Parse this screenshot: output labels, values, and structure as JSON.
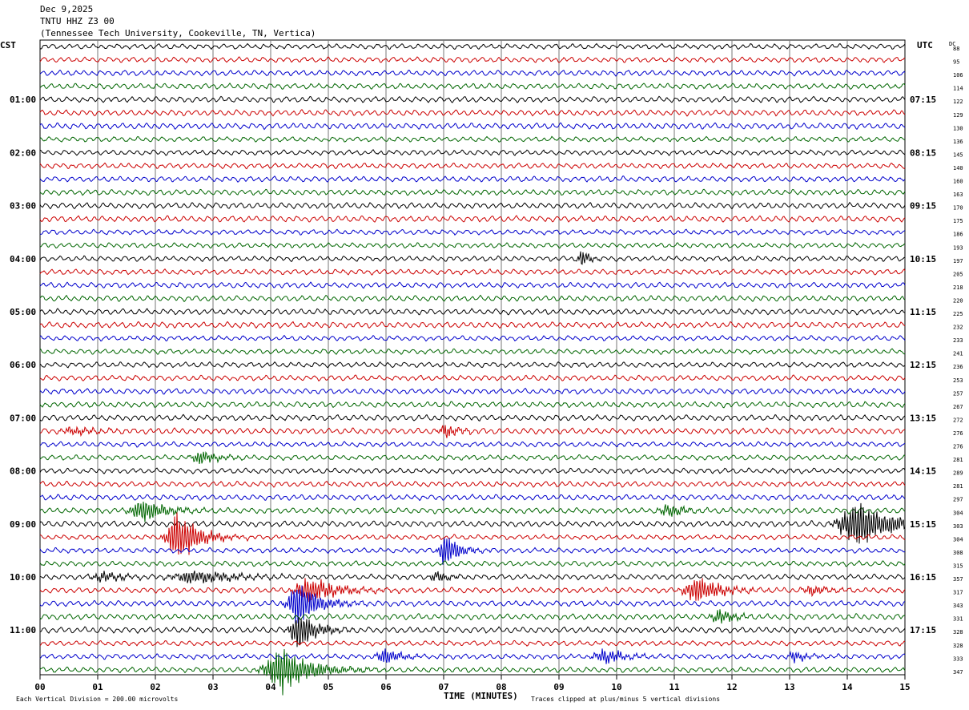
{
  "header": {
    "date": "Dec 9,2025",
    "station": "TNTU HHZ Z3 00",
    "location": "(Tennessee Tech University, Cookeville, TN, Vertica)"
  },
  "left_tz": "CST",
  "right_tz": "UTC",
  "dc_label": "DC",
  "footer": {
    "scale": "Each Vertical Division =  200.00 microvolts",
    "xlabel": "TIME (MINUTES)",
    "clip": "Traces clipped at plus/minus 5 vertical divisions"
  },
  "chart_data": {
    "type": "line",
    "title": "",
    "xlabel": "TIME (MINUTES)",
    "xlim": [
      0,
      15
    ],
    "x_ticks": [
      "00",
      "01",
      "02",
      "03",
      "04",
      "05",
      "06",
      "07",
      "08",
      "09",
      "10",
      "11",
      "12",
      "13",
      "14",
      "15"
    ],
    "colors": [
      "#000000",
      "#cc0000",
      "#0000cc",
      "#006600"
    ],
    "rows_per_hour": 4,
    "left_hour_labels": [
      "01:00",
      "02:00",
      "03:00",
      "04:00",
      "05:00",
      "06:00",
      "07:00",
      "08:00",
      "09:00",
      "10:00",
      "11:00"
    ],
    "right_hour_labels": [
      "07:15",
      "08:15",
      "09:15",
      "10:15",
      "11:15",
      "12:15",
      "13:15",
      "14:15",
      "15:15",
      "16:15",
      "17:15"
    ],
    "dc_offsets": [
      "88",
      "95",
      "106",
      "114",
      "122",
      "129",
      "130",
      "136",
      "145",
      "140",
      "160",
      "163",
      "170",
      "175",
      "186",
      "193",
      "197",
      "205",
      "218",
      "220",
      "225",
      "232",
      "233",
      "241",
      "236",
      "253",
      "257",
      "267",
      "272",
      "276",
      "276",
      "281",
      "289",
      "281",
      "297",
      "304",
      "303",
      "304",
      "308",
      "315",
      "357",
      "317",
      "343",
      "331",
      "328",
      "328",
      "333",
      "347"
    ],
    "events": [
      {
        "row": 16,
        "minute": 9.4,
        "amp": 1.2,
        "dur": 0.1
      },
      {
        "row": 29,
        "minute": 0.6,
        "amp": 0.4,
        "dur": 0.4
      },
      {
        "row": 29,
        "minute": 7.05,
        "amp": 0.8,
        "dur": 0.2
      },
      {
        "row": 31,
        "minute": 2.8,
        "amp": 0.8,
        "dur": 0.25
      },
      {
        "row": 35,
        "minute": 1.8,
        "amp": 1.4,
        "dur": 0.35
      },
      {
        "row": 35,
        "minute": 10.9,
        "amp": 0.8,
        "dur": 0.25
      },
      {
        "row": 36,
        "minute": 14.2,
        "amp": 2.8,
        "dur": 0.5
      },
      {
        "row": 37,
        "minute": 2.4,
        "amp": 3.2,
        "dur": 0.3
      },
      {
        "row": 38,
        "minute": 7.05,
        "amp": 2.0,
        "dur": 0.2
      },
      {
        "row": 40,
        "minute": 1.1,
        "amp": 0.6,
        "dur": 0.3
      },
      {
        "row": 40,
        "minute": 2.7,
        "amp": 0.8,
        "dur": 0.6
      },
      {
        "row": 40,
        "minute": 6.9,
        "amp": 0.6,
        "dur": 0.2
      },
      {
        "row": 41,
        "minute": 4.7,
        "amp": 1.5,
        "dur": 0.4
      },
      {
        "row": 41,
        "minute": 11.4,
        "amp": 1.6,
        "dur": 0.35
      },
      {
        "row": 41,
        "minute": 13.4,
        "amp": 0.6,
        "dur": 0.25
      },
      {
        "row": 42,
        "minute": 4.5,
        "amp": 2.8,
        "dur": 0.3
      },
      {
        "row": 43,
        "minute": 11.8,
        "amp": 0.8,
        "dur": 0.25
      },
      {
        "row": 44,
        "minute": 4.5,
        "amp": 2.4,
        "dur": 0.25
      },
      {
        "row": 46,
        "minute": 6.0,
        "amp": 0.9,
        "dur": 0.25
      },
      {
        "row": 46,
        "minute": 9.8,
        "amp": 0.9,
        "dur": 0.3
      },
      {
        "row": 46,
        "minute": 13.1,
        "amp": 0.6,
        "dur": 0.2
      },
      {
        "row": 47,
        "minute": 4.2,
        "amp": 2.6,
        "dur": 0.45
      }
    ]
  }
}
